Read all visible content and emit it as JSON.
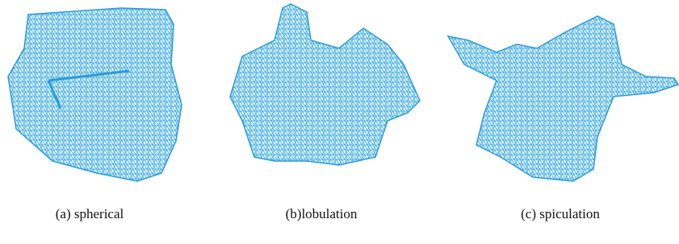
{
  "figure": {
    "panels": [
      {
        "caption": "(a) spherical"
      },
      {
        "caption": "(b)lobulation"
      },
      {
        "caption": "(c) spiculation"
      }
    ]
  }
}
